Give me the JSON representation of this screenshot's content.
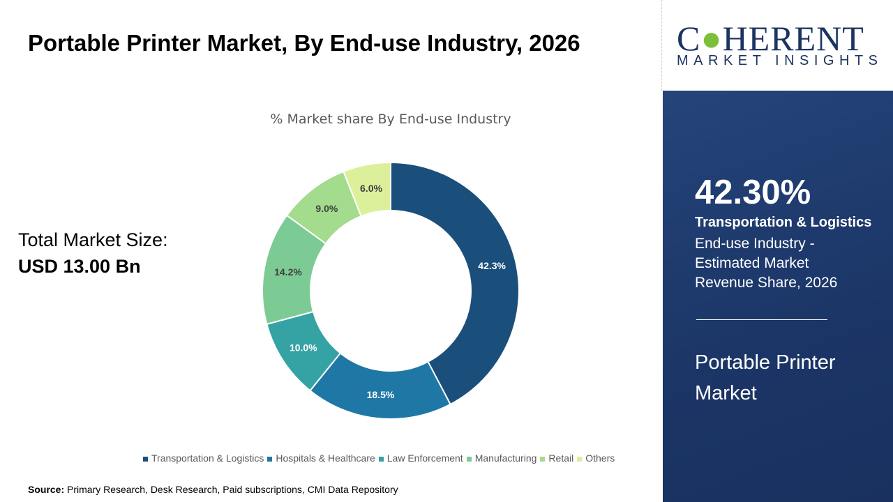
{
  "title": "Portable Printer Market, By End-use Industry, 2026",
  "total": {
    "label": "Total Market Size:",
    "value": "USD 13.00 Bn"
  },
  "source": {
    "label": "Source:",
    "text": " Primary Research, Desk Research, Paid subscriptions, CMI Data Repository"
  },
  "logo": {
    "big": "COHERENT",
    "small": "MARKET INSIGHTS"
  },
  "panel": {
    "percent": "42.30%",
    "segment": "Transportation & Logistics",
    "description": "End-use Industry - Estimated Market Revenue Share, 2026",
    "market": "Portable Printer Market"
  },
  "chart_data": {
    "type": "donut",
    "title": "% Market share By End-use Industry",
    "legend_position": "bottom",
    "categories": [
      "Transportation & Logistics",
      "Hospitals & Healthcare",
      "Law Enforcement",
      "Manufacturing",
      "Retail",
      "Others"
    ],
    "values": [
      42.3,
      18.5,
      10.0,
      14.2,
      9.0,
      6.0
    ],
    "labels": [
      "42.3%",
      "18.5%",
      "10.0%",
      "14.2%",
      "9.0%",
      "6.0%"
    ],
    "colors": [
      "#1b4f7b",
      "#1f77a6",
      "#35a2a4",
      "#7ccb94",
      "#a4dc8e",
      "#dcf09b"
    ]
  }
}
